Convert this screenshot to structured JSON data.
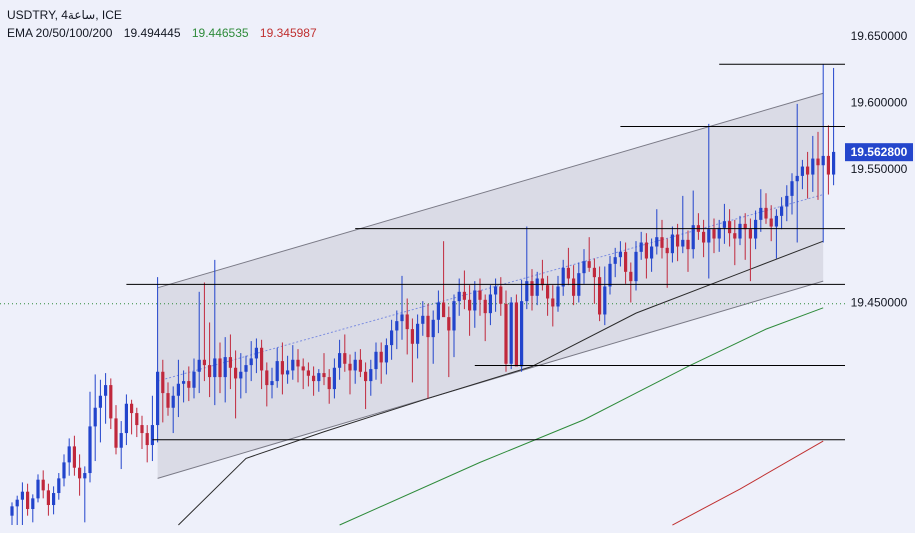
{
  "header": {
    "symbol_line": "USDTRY, 4ساعة, ICE",
    "ema_label": "EMA 20/50/100/200",
    "ema_values": [
      "19.494445",
      "19.446535",
      "19.345987"
    ]
  },
  "colors": {
    "background": "#eef0fa",
    "bull": "#2244cc",
    "bear": "#c0283c",
    "ema_black": "#2a2a2a",
    "ema_green": "#2e8b3a",
    "ema_red": "#c03030",
    "channel_fill": "#d6d7e2",
    "level_line": "#000000",
    "current_tag": "#2446cc"
  },
  "chart_data": {
    "type": "candlestick",
    "title": "USDTRY, 4ساعة, ICE",
    "ylim": [
      19.277,
      19.677
    ],
    "ytick_labels": [
      "19.650000",
      "19.600000",
      "19.550000",
      "19.450000"
    ],
    "ytick_values": [
      19.65,
      19.6,
      19.55,
      19.45
    ],
    "grid": false,
    "current_price": 19.5628,
    "current_price_label": "19.562800",
    "dotted_level": 19.449,
    "horizontal_levels": [
      {
        "label": "19.628828",
        "value": 19.628828,
        "start_bar": 136
      },
      {
        "label": "19.582101",
        "value": 19.582101,
        "start_bar": 117
      },
      {
        "label": "19.505384",
        "value": 19.505384,
        "start_bar": 66
      },
      {
        "label": "19.463586",
        "value": 19.463586,
        "start_bar": 22
      },
      {
        "label": "19.402707",
        "value": 19.402707,
        "start_bar": 89
      },
      {
        "label": "19.347011",
        "value": 19.347011,
        "start_bar": 27
      }
    ],
    "channel": {
      "start_bar": 28,
      "end_bar": 156,
      "upper": [
        19.461,
        19.607
      ],
      "mid": [
        19.391,
        19.531
      ],
      "lower": [
        19.318,
        19.466
      ]
    },
    "ema_lines": [
      {
        "value_label": "19.494445",
        "points": [
          [
            32,
            19.283
          ],
          [
            45,
            19.333
          ],
          [
            60,
            19.353
          ],
          [
            80,
            19.378
          ],
          [
            100,
            19.402
          ],
          [
            120,
            19.442
          ],
          [
            140,
            19.472
          ],
          [
            156,
            19.496
          ]
        ]
      },
      {
        "value_label": "19.446535",
        "points": [
          [
            63,
            19.283
          ],
          [
            90,
            19.33
          ],
          [
            110,
            19.362
          ],
          [
            130,
            19.402
          ],
          [
            145,
            19.43
          ],
          [
            156,
            19.446
          ]
        ]
      },
      {
        "value_label": "19.345987",
        "points": [
          [
            127,
            19.283
          ],
          [
            140,
            19.31
          ],
          [
            156,
            19.346
          ]
        ]
      }
    ],
    "candles": [
      [
        19.29,
        19.3,
        19.283,
        19.297
      ],
      [
        19.297,
        19.305,
        19.283,
        19.302
      ],
      [
        19.302,
        19.315,
        19.283,
        19.308
      ],
      [
        19.308,
        19.314,
        19.29,
        19.295
      ],
      [
        19.295,
        19.306,
        19.285,
        19.303
      ],
      [
        19.303,
        19.321,
        19.3,
        19.317
      ],
      [
        19.317,
        19.324,
        19.303,
        19.309
      ],
      [
        19.309,
        19.314,
        19.29,
        19.298
      ],
      [
        19.298,
        19.312,
        19.291,
        19.307
      ],
      [
        19.307,
        19.322,
        19.302,
        19.318
      ],
      [
        19.318,
        19.336,
        19.312,
        19.33
      ],
      [
        19.33,
        19.348,
        19.32,
        19.342
      ],
      [
        19.342,
        19.35,
        19.32,
        19.326
      ],
      [
        19.326,
        19.336,
        19.305,
        19.318
      ],
      [
        19.318,
        19.327,
        19.285,
        19.322
      ],
      [
        19.322,
        19.383,
        19.315,
        19.357
      ],
      [
        19.357,
        19.396,
        19.331,
        19.371
      ],
      [
        19.371,
        19.392,
        19.345,
        19.38
      ],
      [
        19.38,
        19.397,
        19.359,
        19.388
      ],
      [
        19.388,
        19.393,
        19.355,
        19.363
      ],
      [
        19.363,
        19.373,
        19.336,
        19.341
      ],
      [
        19.341,
        19.361,
        19.325,
        19.352
      ],
      [
        19.352,
        19.381,
        19.343,
        19.374
      ],
      [
        19.374,
        19.377,
        19.351,
        19.367
      ],
      [
        19.367,
        19.371,
        19.349,
        19.358
      ],
      [
        19.358,
        19.365,
        19.34,
        19.352
      ],
      [
        19.352,
        19.358,
        19.33,
        19.343
      ],
      [
        19.343,
        19.38,
        19.331,
        19.358
      ],
      [
        19.358,
        19.469,
        19.345,
        19.398
      ],
      [
        19.398,
        19.407,
        19.36,
        19.382
      ],
      [
        19.382,
        19.39,
        19.365,
        19.371
      ],
      [
        19.371,
        19.387,
        19.352,
        19.38
      ],
      [
        19.38,
        19.407,
        19.364,
        19.389
      ],
      [
        19.389,
        19.399,
        19.375,
        19.391
      ],
      [
        19.391,
        19.402,
        19.376,
        19.386
      ],
      [
        19.386,
        19.408,
        19.378,
        19.398
      ],
      [
        19.398,
        19.458,
        19.382,
        19.407
      ],
      [
        19.407,
        19.465,
        19.391,
        19.403
      ],
      [
        19.403,
        19.435,
        19.379,
        19.394
      ],
      [
        19.394,
        19.482,
        19.373,
        19.408
      ],
      [
        19.408,
        19.42,
        19.382,
        19.394
      ],
      [
        19.394,
        19.424,
        19.375,
        19.409
      ],
      [
        19.409,
        19.426,
        19.385,
        19.401
      ],
      [
        19.401,
        19.414,
        19.363,
        19.393
      ],
      [
        19.393,
        19.412,
        19.378,
        19.398
      ],
      [
        19.398,
        19.41,
        19.382,
        19.403
      ],
      [
        19.403,
        19.421,
        19.391,
        19.408
      ],
      [
        19.408,
        19.423,
        19.397,
        19.416
      ],
      [
        19.416,
        19.422,
        19.385,
        19.399
      ],
      [
        19.399,
        19.405,
        19.372,
        19.388
      ],
      [
        19.388,
        19.401,
        19.378,
        19.391
      ],
      [
        19.391,
        19.416,
        19.386,
        19.406
      ],
      [
        19.406,
        19.42,
        19.381,
        19.396
      ],
      [
        19.396,
        19.41,
        19.389,
        19.399
      ],
      [
        19.399,
        19.418,
        19.392,
        19.407
      ],
      [
        19.407,
        19.415,
        19.39,
        19.402
      ],
      [
        19.402,
        19.408,
        19.385,
        19.399
      ],
      [
        19.399,
        19.405,
        19.387,
        19.395
      ],
      [
        19.395,
        19.402,
        19.38,
        19.391
      ],
      [
        19.391,
        19.4,
        19.383,
        19.397
      ],
      [
        19.397,
        19.412,
        19.388,
        19.394
      ],
      [
        19.394,
        19.4,
        19.374,
        19.385
      ],
      [
        19.385,
        19.408,
        19.378,
        19.401
      ],
      [
        19.401,
        19.422,
        19.392,
        19.412
      ],
      [
        19.412,
        19.426,
        19.398,
        19.404
      ],
      [
        19.404,
        19.411,
        19.381,
        19.399
      ],
      [
        19.399,
        19.413,
        19.389,
        19.407
      ],
      [
        19.407,
        19.415,
        19.394,
        19.398
      ],
      [
        19.398,
        19.405,
        19.37,
        19.391
      ],
      [
        19.391,
        19.407,
        19.38,
        19.4
      ],
      [
        19.4,
        19.42,
        19.392,
        19.413
      ],
      [
        19.413,
        19.42,
        19.389,
        19.405
      ],
      [
        19.405,
        19.423,
        19.396,
        19.418
      ],
      [
        19.418,
        19.437,
        19.407,
        19.429
      ],
      [
        19.429,
        19.444,
        19.415,
        19.436
      ],
      [
        19.436,
        19.47,
        19.422,
        19.441
      ],
      [
        19.441,
        19.453,
        19.411,
        19.43
      ],
      [
        19.43,
        19.438,
        19.39,
        19.419
      ],
      [
        19.419,
        19.441,
        19.408,
        19.434
      ],
      [
        19.434,
        19.451,
        19.425,
        19.44
      ],
      [
        19.44,
        19.449,
        19.378,
        19.424
      ],
      [
        19.424,
        19.444,
        19.404,
        19.437
      ],
      [
        19.437,
        19.459,
        19.427,
        19.45
      ],
      [
        19.45,
        19.496,
        19.441,
        19.439
      ],
      [
        19.439,
        19.447,
        19.394,
        19.429
      ],
      [
        19.429,
        19.456,
        19.409,
        19.451
      ],
      [
        19.451,
        19.468,
        19.44,
        19.458
      ],
      [
        19.458,
        19.474,
        19.445,
        19.452
      ],
      [
        19.452,
        19.463,
        19.425,
        19.444
      ],
      [
        19.444,
        19.466,
        19.431,
        19.459
      ],
      [
        19.459,
        19.468,
        19.44,
        19.452
      ],
      [
        19.452,
        19.456,
        19.421,
        19.442
      ],
      [
        19.442,
        19.463,
        19.433,
        19.456
      ],
      [
        19.456,
        19.468,
        19.443,
        19.462
      ],
      [
        19.462,
        19.469,
        19.44,
        19.449
      ],
      [
        19.449,
        19.459,
        19.398,
        19.404
      ],
      [
        19.404,
        19.454,
        19.4,
        19.45
      ],
      [
        19.45,
        19.456,
        19.403,
        19.402
      ],
      [
        19.402,
        19.467,
        19.398,
        19.451
      ],
      [
        19.451,
        19.507,
        19.445,
        19.466
      ],
      [
        19.466,
        19.475,
        19.444,
        19.455
      ],
      [
        19.455,
        19.473,
        19.448,
        19.468
      ],
      [
        19.468,
        19.482,
        19.459,
        19.463
      ],
      [
        19.463,
        19.47,
        19.44,
        19.453
      ],
      [
        19.453,
        19.463,
        19.432,
        19.447
      ],
      [
        19.447,
        19.47,
        19.443,
        19.462
      ],
      [
        19.462,
        19.482,
        19.455,
        19.476
      ],
      [
        19.476,
        19.491,
        19.463,
        19.468
      ],
      [
        19.468,
        19.478,
        19.448,
        19.455
      ],
      [
        19.455,
        19.48,
        19.45,
        19.472
      ],
      [
        19.472,
        19.49,
        19.464,
        19.481
      ],
      [
        19.481,
        19.499,
        19.473,
        19.476
      ],
      [
        19.476,
        19.483,
        19.449,
        19.469
      ],
      [
        19.469,
        19.477,
        19.436,
        19.441
      ],
      [
        19.441,
        19.477,
        19.433,
        19.462
      ],
      [
        19.462,
        19.485,
        19.456,
        19.479
      ],
      [
        19.479,
        19.491,
        19.469,
        19.484
      ],
      [
        19.484,
        19.496,
        19.477,
        19.488
      ],
      [
        19.488,
        19.495,
        19.464,
        19.473
      ],
      [
        19.473,
        19.48,
        19.45,
        19.466
      ],
      [
        19.466,
        19.496,
        19.459,
        19.488
      ],
      [
        19.488,
        19.503,
        19.482,
        19.495
      ],
      [
        19.495,
        19.502,
        19.468,
        19.483
      ],
      [
        19.483,
        19.498,
        19.473,
        19.492
      ],
      [
        19.492,
        19.52,
        19.486,
        19.499
      ],
      [
        19.499,
        19.512,
        19.483,
        19.491
      ],
      [
        19.491,
        19.498,
        19.461,
        19.487
      ],
      [
        19.487,
        19.507,
        19.48,
        19.501
      ],
      [
        19.501,
        19.509,
        19.481,
        19.492
      ],
      [
        19.492,
        19.53,
        19.487,
        19.497
      ],
      [
        19.497,
        19.504,
        19.473,
        19.49
      ],
      [
        19.49,
        19.534,
        19.483,
        19.508
      ],
      [
        19.508,
        19.517,
        19.497,
        19.503
      ],
      [
        19.503,
        19.512,
        19.484,
        19.495
      ],
      [
        19.495,
        19.584,
        19.468,
        19.505
      ],
      [
        19.505,
        19.513,
        19.487,
        19.498
      ],
      [
        19.498,
        19.512,
        19.488,
        19.506
      ],
      [
        19.506,
        19.524,
        19.494,
        19.511
      ],
      [
        19.511,
        19.52,
        19.492,
        19.502
      ],
      [
        19.502,
        19.512,
        19.478,
        19.498
      ],
      [
        19.498,
        19.515,
        19.493,
        19.509
      ],
      [
        19.509,
        19.517,
        19.482,
        19.505
      ],
      [
        19.505,
        19.513,
        19.466,
        19.498
      ],
      [
        19.498,
        19.519,
        19.49,
        19.512
      ],
      [
        19.512,
        19.535,
        19.503,
        19.521
      ],
      [
        19.521,
        19.532,
        19.509,
        19.513
      ],
      [
        19.513,
        19.523,
        19.496,
        19.507
      ],
      [
        19.507,
        19.52,
        19.483,
        19.515
      ],
      [
        19.515,
        19.529,
        19.505,
        19.522
      ],
      [
        19.522,
        19.538,
        19.511,
        19.53
      ],
      [
        19.53,
        19.547,
        19.516,
        19.541
      ],
      [
        19.541,
        19.599,
        19.495,
        19.545
      ],
      [
        19.545,
        19.557,
        19.535,
        19.552
      ],
      [
        19.552,
        19.563,
        19.528,
        19.546
      ],
      [
        19.546,
        19.575,
        19.533,
        19.558
      ],
      [
        19.558,
        19.578,
        19.527,
        19.553
      ],
      [
        19.553,
        19.629,
        19.495,
        19.56
      ],
      [
        19.56,
        19.583,
        19.531,
        19.546
      ],
      [
        19.546,
        19.626,
        19.538,
        19.563
      ]
    ]
  }
}
